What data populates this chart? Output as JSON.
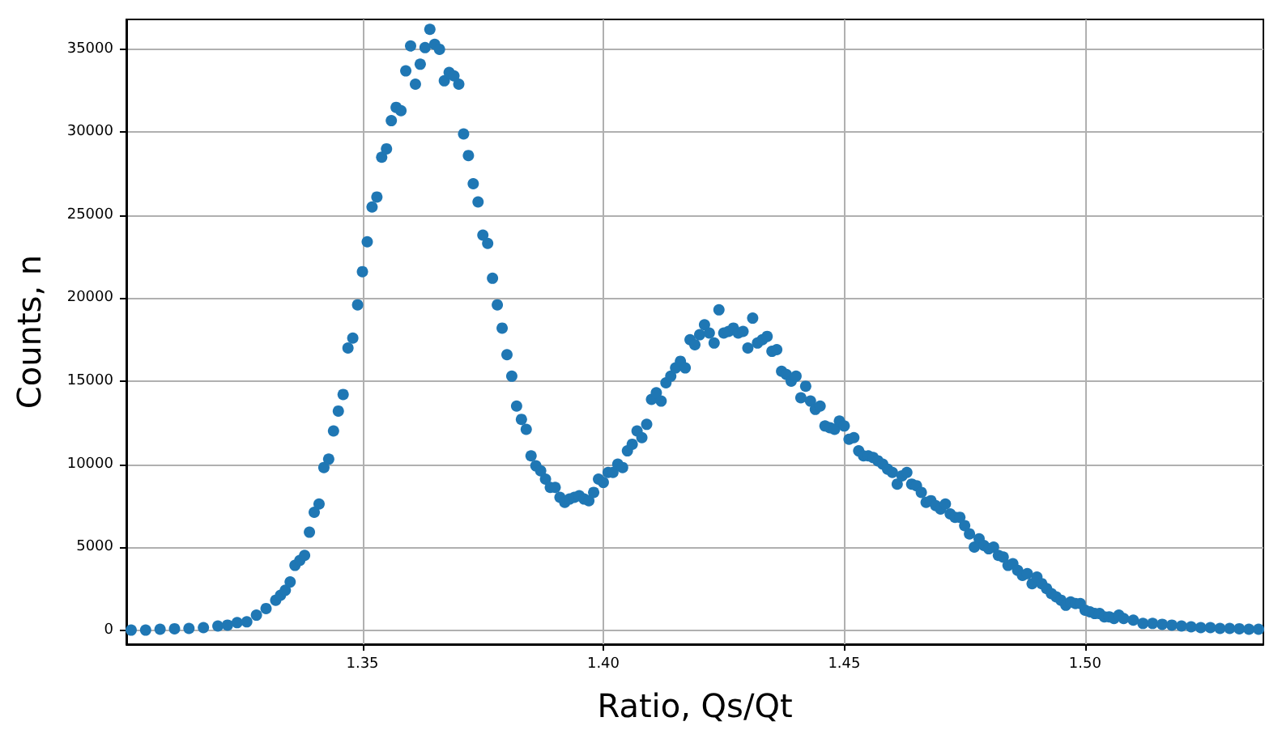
{
  "chart_data": {
    "type": "scatter",
    "xlabel": "Ratio, Qs/Qt",
    "ylabel": "Counts, n",
    "xlim": [
      1.301,
      1.537
    ],
    "ylim": [
      -850,
      36800
    ],
    "xticks": [
      {
        "value": 1.35,
        "label": "1.35"
      },
      {
        "value": 1.4,
        "label": "1.40"
      },
      {
        "value": 1.45,
        "label": "1.45"
      },
      {
        "value": 1.5,
        "label": "1.50"
      }
    ],
    "yticks": [
      0,
      5000,
      10000,
      15000,
      20000,
      25000,
      30000,
      35000
    ],
    "grid": true,
    "marker": "circle",
    "series": [
      {
        "color": "#1f77b4",
        "x": [
          1.302,
          1.305,
          1.308,
          1.311,
          1.314,
          1.317,
          1.32,
          1.322,
          1.324,
          1.326,
          1.328,
          1.33,
          1.332,
          1.333,
          1.334,
          1.335,
          1.336,
          1.337,
          1.338,
          1.339,
          1.34,
          1.341,
          1.342,
          1.343,
          1.344,
          1.345,
          1.346,
          1.347,
          1.348,
          1.349,
          1.35,
          1.351,
          1.352,
          1.353,
          1.354,
          1.355,
          1.356,
          1.357,
          1.358,
          1.359,
          1.36,
          1.361,
          1.362,
          1.363,
          1.364,
          1.365,
          1.366,
          1.367,
          1.368,
          1.369,
          1.37,
          1.371,
          1.372,
          1.373,
          1.374,
          1.375,
          1.376,
          1.377,
          1.378,
          1.379,
          1.38,
          1.381,
          1.382,
          1.383,
          1.384,
          1.385,
          1.386,
          1.387,
          1.388,
          1.389,
          1.39,
          1.391,
          1.392,
          1.393,
          1.394,
          1.395,
          1.396,
          1.397,
          1.398,
          1.399,
          1.4,
          1.401,
          1.402,
          1.403,
          1.404,
          1.405,
          1.406,
          1.407,
          1.408,
          1.409,
          1.41,
          1.411,
          1.412,
          1.413,
          1.414,
          1.415,
          1.416,
          1.417,
          1.418,
          1.419,
          1.42,
          1.421,
          1.422,
          1.423,
          1.424,
          1.425,
          1.426,
          1.427,
          1.428,
          1.429,
          1.43,
          1.431,
          1.432,
          1.433,
          1.434,
          1.435,
          1.436,
          1.437,
          1.438,
          1.439,
          1.44,
          1.441,
          1.442,
          1.443,
          1.444,
          1.445,
          1.446,
          1.447,
          1.448,
          1.449,
          1.45,
          1.451,
          1.452,
          1.453,
          1.454,
          1.455,
          1.456,
          1.457,
          1.458,
          1.459,
          1.46,
          1.461,
          1.462,
          1.463,
          1.464,
          1.465,
          1.466,
          1.467,
          1.468,
          1.469,
          1.47,
          1.471,
          1.472,
          1.473,
          1.474,
          1.475,
          1.476,
          1.477,
          1.478,
          1.479,
          1.48,
          1.481,
          1.482,
          1.483,
          1.484,
          1.485,
          1.486,
          1.487,
          1.488,
          1.489,
          1.49,
          1.491,
          1.492,
          1.493,
          1.494,
          1.495,
          1.496,
          1.497,
          1.498,
          1.499,
          1.5,
          1.501,
          1.502,
          1.503,
          1.504,
          1.505,
          1.506,
          1.507,
          1.508,
          1.51,
          1.512,
          1.514,
          1.516,
          1.518,
          1.52,
          1.522,
          1.524,
          1.526,
          1.528,
          1.53,
          1.532,
          1.534,
          1.536
        ],
        "values": [
          0,
          0,
          50,
          80,
          100,
          150,
          250,
          300,
          450,
          500,
          900,
          1300,
          1800,
          2100,
          2400,
          2900,
          3900,
          4200,
          4500,
          5900,
          7100,
          7600,
          9800,
          10300,
          12000,
          13200,
          14200,
          17000,
          17600,
          19600,
          21600,
          23400,
          25500,
          26100,
          28500,
          29000,
          30700,
          31500,
          31300,
          33700,
          35200,
          32900,
          34100,
          35100,
          36200,
          35300,
          35000,
          33100,
          33600,
          33400,
          32900,
          29900,
          28600,
          26900,
          25800,
          23800,
          23300,
          21200,
          19600,
          18200,
          16600,
          15300,
          13500,
          12700,
          12100,
          10500,
          9900,
          9600,
          9100,
          8600,
          8600,
          8000,
          7700,
          7900,
          8000,
          8100,
          7900,
          7800,
          8300,
          9100,
          8900,
          9500,
          9500,
          10000,
          9800,
          10800,
          11200,
          12000,
          11600,
          12400,
          13900,
          14300,
          13800,
          14900,
          15300,
          15800,
          16200,
          15800,
          17500,
          17200,
          17800,
          18400,
          17900,
          17300,
          19300,
          17900,
          18000,
          18200,
          17900,
          18000,
          17000,
          18800,
          17300,
          17500,
          17700,
          16800,
          16900,
          15600,
          15400,
          15000,
          15300,
          14000,
          14700,
          13800,
          13300,
          13500,
          12300,
          12200,
          12100,
          12600,
          12300,
          11500,
          11600,
          10800,
          10500,
          10500,
          10400,
          10200,
          10000,
          9700,
          9500,
          8800,
          9300,
          9500,
          8800,
          8700,
          8300,
          7700,
          7800,
          7500,
          7300,
          7600,
          7000,
          6800,
          6800,
          6300,
          5800,
          5000,
          5500,
          5100,
          4900,
          5000,
          4500,
          4400,
          3900,
          4000,
          3600,
          3300,
          3400,
          2800,
          3200,
          2800,
          2500,
          2200,
          2000,
          1800,
          1500,
          1700,
          1600,
          1600,
          1200,
          1100,
          1000,
          1000,
          800,
          800,
          700,
          900,
          700,
          600,
          400,
          400,
          350,
          300,
          250,
          200,
          150,
          150,
          100,
          100,
          80,
          50,
          50
        ]
      }
    ]
  }
}
